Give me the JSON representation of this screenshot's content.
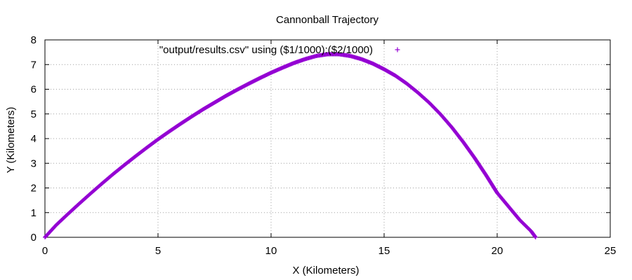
{
  "chart_data": {
    "type": "scatter",
    "title": "Cannonball Trajectory",
    "xlabel": "X (Kilometers)",
    "ylabel": "Y (Kilometers)",
    "xlim": [
      0,
      25
    ],
    "ylim": [
      0,
      8
    ],
    "xticks": [
      "0",
      "5",
      "10",
      "15",
      "20",
      "25"
    ],
    "yticks": [
      "0",
      "1",
      "2",
      "3",
      "4",
      "5",
      "6",
      "7",
      "8"
    ],
    "grid": true,
    "legend_position": "top",
    "series": [
      {
        "name": "\"output/results.csv\" using ($1/1000):($2/1000)",
        "color": "#9400d3",
        "marker": "plus",
        "x": [
          0,
          0.5,
          1,
          1.5,
          2,
          2.5,
          3,
          3.5,
          4,
          4.5,
          5,
          5.5,
          6,
          6.5,
          7,
          7.5,
          8,
          8.5,
          9,
          9.5,
          10,
          10.5,
          11,
          11.5,
          12,
          12.5,
          13,
          13.5,
          14,
          14.5,
          15,
          15.5,
          16,
          16.5,
          17,
          17.5,
          18,
          18.5,
          19,
          19.5,
          20,
          20.5,
          21,
          21.5,
          21.7
        ],
        "y": [
          0,
          0.5,
          0.93,
          1.35,
          1.76,
          2.16,
          2.55,
          2.92,
          3.28,
          3.63,
          3.97,
          4.29,
          4.6,
          4.9,
          5.19,
          5.46,
          5.73,
          5.98,
          6.22,
          6.45,
          6.67,
          6.87,
          7.06,
          7.22,
          7.35,
          7.42,
          7.42,
          7.35,
          7.22,
          7.04,
          6.81,
          6.55,
          6.23,
          5.86,
          5.45,
          4.98,
          4.45,
          3.86,
          3.22,
          2.53,
          1.8,
          1.25,
          0.7,
          0.25,
          0
        ]
      }
    ]
  }
}
